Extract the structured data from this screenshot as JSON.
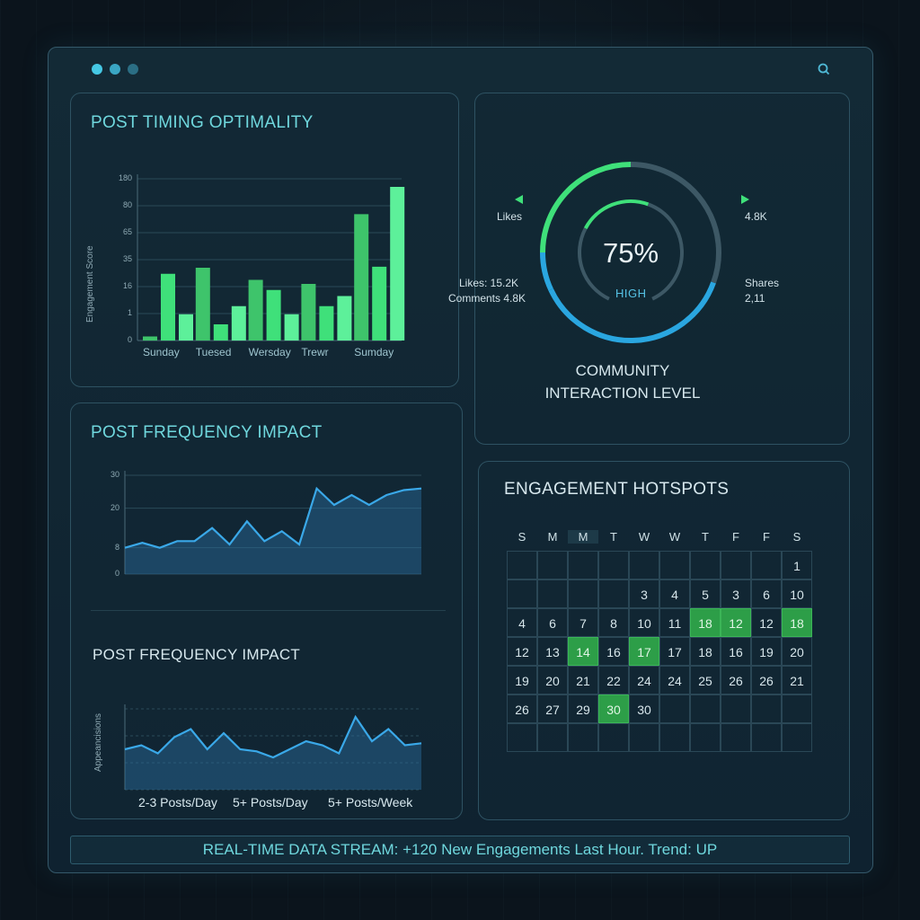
{
  "window": {
    "controls": [
      "close",
      "minimize",
      "maximize"
    ],
    "search_icon": "search-icon"
  },
  "timing": {
    "title": "POST TIMING OPTIMALITY",
    "chart_data": {
      "type": "bar",
      "ylabel": "Engagement Score",
      "yticks": [
        "0",
        "1",
        "16",
        "35",
        "65",
        "80",
        "180"
      ],
      "categories": [
        "Sunday",
        "Tuesed",
        "Wersday",
        "Trewr",
        "Sumday"
      ],
      "series": [
        {
          "values": [
            4,
            72,
            60,
            56,
            125
          ]
        },
        {
          "values": [
            66,
            16,
            50,
            34,
            73
          ]
        },
        {
          "values": [
            26,
            34,
            26,
            44,
            152
          ]
        }
      ],
      "colors": [
        "#3ec46b",
        "#3fe07a",
        "#5df09a"
      ]
    }
  },
  "community": {
    "left_top_label": "Likes",
    "left_mid_label_1": "Likes:  15.2K",
    "left_mid_label_2": "Comments 4.8K",
    "right_top_label": "4.8K",
    "right_mid_label_1": "Shares",
    "right_mid_label_2": "2,11",
    "percent": "75%",
    "level": "HIGH",
    "title_line1": "COMMUNITY",
    "title_line2": "INTERACTION LEVEL",
    "gauge_value": 0.75,
    "colors": {
      "blue": "#2aa6e0",
      "green": "#3fe07a",
      "track": "#3d5865"
    }
  },
  "freq1": {
    "title": "POST FREQUENCY IMPACT",
    "chart_data": {
      "type": "area",
      "yticks": [
        "0",
        "8",
        "20",
        "30"
      ],
      "x": [
        0,
        1,
        2,
        3,
        4,
        5,
        6,
        7,
        8,
        9,
        10,
        11,
        12,
        13,
        14,
        15,
        16,
        17
      ],
      "values": [
        8,
        9.5,
        8,
        10,
        10,
        14,
        9,
        16,
        10,
        13,
        9,
        26,
        21,
        24,
        21,
        24,
        25.5,
        26
      ]
    }
  },
  "freq2": {
    "title": "POST FREQUENCY IMPACT",
    "chart_data": {
      "type": "area",
      "ylabel": "Appeancisions",
      "xlabels": [
        "2-3 Posts/Day",
        "5+ Posts/Day",
        "5+ Posts/Week"
      ],
      "values": [
        10,
        11,
        9,
        13,
        15,
        10,
        14,
        10,
        9.5,
        8,
        10,
        12,
        11,
        9,
        18,
        12,
        15,
        11,
        11.5
      ]
    }
  },
  "hotspots": {
    "title": "ENGAGEMENT HOTSPOTS",
    "weekdays": [
      "S",
      "M",
      "M",
      "T",
      "W",
      "W",
      "T",
      "F",
      "F",
      "S"
    ],
    "rows": [
      [
        "",
        "",
        "",
        "",
        "",
        "",
        "",
        "",
        "",
        "1"
      ],
      [
        "",
        "",
        "",
        "",
        "3",
        "4",
        "5",
        "3",
        "6",
        "10"
      ],
      [
        "4",
        "6",
        "7",
        "8",
        "10",
        "11",
        "18",
        "12",
        "12",
        "18"
      ],
      [
        "12",
        "13",
        "14",
        "16",
        "17",
        "17",
        "18",
        "16",
        "19",
        "20"
      ],
      [
        "19",
        "20",
        "21",
        "22",
        "24",
        "24",
        "25",
        "26",
        "26",
        "21"
      ],
      [
        "26",
        "27",
        "29",
        "30",
        "30",
        "",
        "",
        "",
        "",
        ""
      ],
      [
        "",
        "",
        "",
        "",
        "",
        "",
        "",
        "",
        "",
        ""
      ]
    ],
    "hot": [
      [
        2,
        6
      ],
      [
        2,
        7
      ],
      [
        2,
        9
      ],
      [
        3,
        2
      ],
      [
        3,
        4
      ],
      [
        5,
        3
      ]
    ]
  },
  "status": {
    "text": "REAL-TIME DATA STREAM: +120 New Engagements Last Hour. Trend: UP"
  }
}
